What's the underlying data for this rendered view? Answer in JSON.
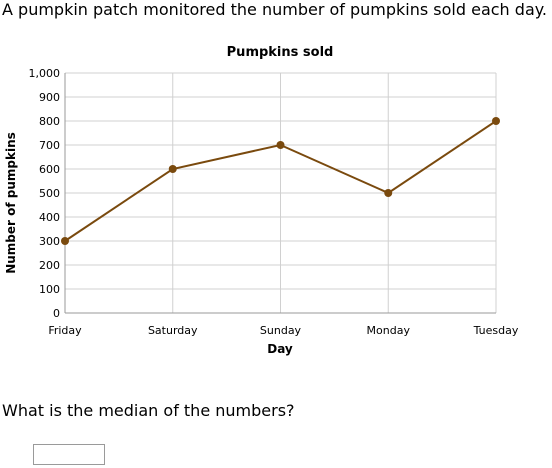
{
  "intro": "A pumpkin patch monitored the number of pumpkins sold each day.",
  "question": "What is the median of the numbers?",
  "answer": {
    "value": ""
  },
  "colors": {
    "line": "#7a4a0e",
    "point": "#7a4a0e",
    "grid": "#d0d0d0",
    "axis": "#9a9a9a"
  },
  "chart_data": {
    "type": "line",
    "title": "Pumpkins sold",
    "xlabel": "Day",
    "ylabel": "Number of pumpkins",
    "categories": [
      "Friday",
      "Saturday",
      "Sunday",
      "Monday",
      "Tuesday"
    ],
    "values": [
      300,
      600,
      700,
      500,
      800
    ],
    "ylim": [
      0,
      1000
    ],
    "yticks": [
      0,
      100,
      200,
      300,
      400,
      500,
      600,
      700,
      800,
      900,
      1000
    ],
    "ytick_labels": [
      "0",
      "100",
      "200",
      "300",
      "400",
      "500",
      "600",
      "700",
      "800",
      "900",
      "1,000"
    ],
    "grid": true,
    "markers": true
  }
}
